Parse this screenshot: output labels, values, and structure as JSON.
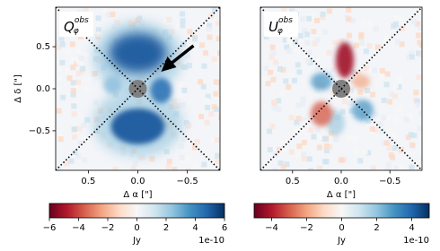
{
  "chart_data": [
    {
      "type": "image",
      "label": {
        "base": "Q",
        "sub": "φ",
        "sup": "obs"
      },
      "xlabel": "Δ α [\"]",
      "ylabel": "Δ δ [\"]",
      "xlim": [
        0.83,
        -0.83
      ],
      "ylim": [
        -0.97,
        0.97
      ],
      "xticks": [
        {
          "value": 0.5,
          "label": "0.5"
        },
        {
          "value": 0,
          "label": "0.0"
        },
        {
          "value": -0.5,
          "label": "−0.5"
        }
      ],
      "yticks": [
        {
          "value": 0.5,
          "label": "0.5"
        },
        {
          "value": 0,
          "label": "0.0"
        },
        {
          "value": -0.5,
          "label": "−0.5"
        }
      ],
      "colorbar": {
        "lim": [
          -6,
          6
        ],
        "ticks": [
          {
            "value": -6,
            "label": "−6"
          },
          {
            "value": -4,
            "label": "−4"
          },
          {
            "value": -2,
            "label": "−2"
          },
          0,
          2,
          4,
          6
        ],
        "label": "Jy",
        "offset": "1e-10"
      }
    },
    {
      "type": "image",
      "label": {
        "base": "U",
        "sub": "φ",
        "sup": "obs"
      },
      "xlabel": "Δ α [\"]",
      "xlim": [
        0.83,
        -0.83
      ],
      "ylim": [
        -0.97,
        0.97
      ],
      "xticks": [
        {
          "value": 0.5,
          "label": "0.5"
        },
        {
          "value": 0,
          "label": "0.0"
        },
        {
          "value": -0.5,
          "label": "−0.5"
        }
      ],
      "colorbar": {
        "lim": [
          -5,
          5
        ],
        "ticks": [
          {
            "value": -4,
            "label": "−4"
          },
          {
            "value": -2,
            "label": "−2"
          },
          0,
          2,
          4
        ],
        "label": "Jy",
        "offset": "1e-10"
      }
    }
  ]
}
